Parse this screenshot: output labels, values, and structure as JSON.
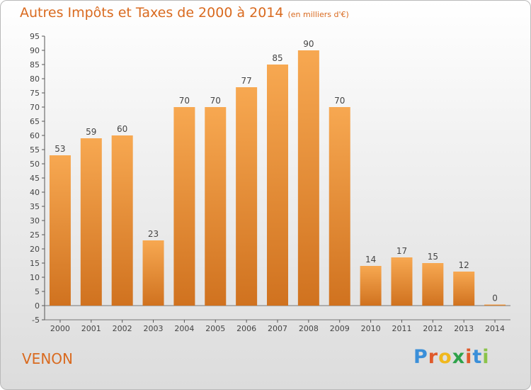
{
  "title": "Autres Impôts et Taxes de 2000 à 2014",
  "unit_label": "(en milliers d'€)",
  "location": "VENON",
  "brand": {
    "letters": [
      "P",
      "r",
      "o",
      "x",
      "i",
      "t",
      "i"
    ],
    "colors": [
      "#3a8fd9",
      "#e05a2b",
      "#f0b81e",
      "#2ea24a",
      "#e05a2b",
      "#3a8fd9",
      "#8bc34a"
    ]
  },
  "colors": {
    "accent": "#d96a1f",
    "bar_light": "#f7a851",
    "bar_dark": "#d0721f"
  },
  "chart_data": {
    "type": "bar",
    "title": "Autres Impôts et Taxes de 2000 à 2014",
    "xlabel": "",
    "ylabel": "",
    "categories": [
      "2000",
      "2001",
      "2002",
      "2003",
      "2004",
      "2005",
      "2006",
      "2007",
      "2008",
      "2009",
      "2010",
      "2011",
      "2012",
      "2013",
      "2014"
    ],
    "values": [
      53,
      59,
      60,
      23,
      70,
      70,
      77,
      85,
      90,
      70,
      14,
      17,
      15,
      12,
      0
    ],
    "ylim": [
      -5,
      95
    ],
    "yticks": [
      -5,
      0,
      5,
      10,
      15,
      20,
      25,
      30,
      35,
      40,
      45,
      50,
      55,
      60,
      65,
      70,
      75,
      80,
      85,
      90,
      95
    ],
    "grid": false,
    "data_labels": true
  }
}
